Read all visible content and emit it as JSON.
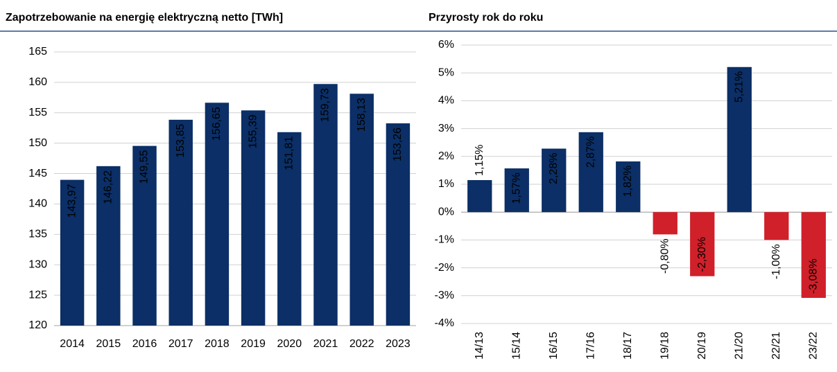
{
  "chart_data": [
    {
      "type": "bar",
      "title": "Zapotrzebowanie na energię elektryczną netto [TWh]",
      "categories": [
        "2014",
        "2015",
        "2016",
        "2017",
        "2018",
        "2019",
        "2020",
        "2021",
        "2022",
        "2023"
      ],
      "values": [
        143.97,
        146.22,
        149.55,
        153.85,
        156.65,
        155.39,
        151.81,
        159.73,
        158.13,
        153.26
      ],
      "value_labels": [
        "143,97",
        "146,22",
        "149,55",
        "153,85",
        "156,65",
        "155,39",
        "151,81",
        "159,73",
        "158,13",
        "153,26"
      ],
      "color": "#0b2f66",
      "ylim": [
        120,
        165
      ],
      "yticks": [
        120,
        125,
        130,
        135,
        140,
        145,
        150,
        155,
        160,
        165
      ],
      "grid": true
    },
    {
      "type": "bar",
      "title": "Przyrosty rok do roku",
      "categories": [
        "14/13",
        "15/14",
        "16/15",
        "17/16",
        "18/17",
        "19/18",
        "20/19",
        "21/20",
        "22/21",
        "23/22"
      ],
      "values": [
        1.15,
        1.57,
        2.28,
        2.87,
        1.82,
        -0.8,
        -2.3,
        5.21,
        -1.0,
        -3.08
      ],
      "value_labels": [
        "1,15%",
        "1,57%",
        "2,28%",
        "2,87%",
        "1,82%",
        "-0,80%",
        "-2,30%",
        "5,21%",
        "-1,00%",
        "-3,08%"
      ],
      "color": "#0b2f66",
      "negative_color": "#d0202a",
      "ylim": [
        -4,
        6
      ],
      "yticks": [
        {
          "value": -4,
          "label": "-4%"
        },
        {
          "value": -3,
          "label": "-3%"
        },
        {
          "value": -2,
          "label": "-2%"
        },
        {
          "value": -1,
          "label": "-1%"
        },
        {
          "value": 0,
          "label": "0%"
        },
        {
          "value": 1,
          "label": "1%"
        },
        {
          "value": 2,
          "label": "2%"
        },
        {
          "value": 3,
          "label": "3%"
        },
        {
          "value": 4,
          "label": "4%"
        },
        {
          "value": 5,
          "label": "5%"
        },
        {
          "value": 6,
          "label": "6%"
        }
      ],
      "grid": true
    }
  ]
}
